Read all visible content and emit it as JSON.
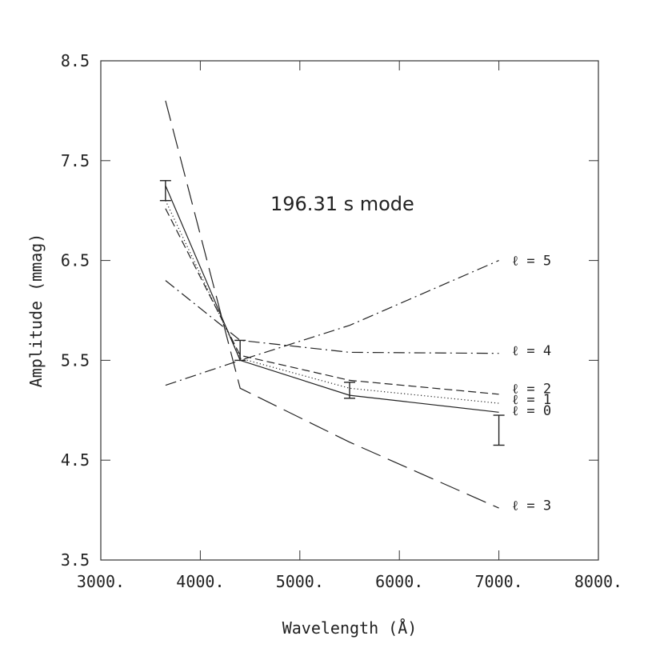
{
  "chart_data": {
    "type": "line",
    "title": "196.31 s mode",
    "xlabel": "Wavelength (Å)",
    "ylabel": "Amplitude (mmag)",
    "xlim": [
      3000,
      8000
    ],
    "ylim": [
      3.5,
      8.5
    ],
    "xticks": [
      "3000.",
      "4000.",
      "5000.",
      "6000.",
      "7000.",
      "8000."
    ],
    "xtick_values": [
      3000,
      4000,
      5000,
      6000,
      7000,
      8000
    ],
    "yticks": [
      "3.5",
      "4.5",
      "5.5",
      "6.5",
      "7.5",
      "8.5"
    ],
    "ytick_values": [
      3.5,
      4.5,
      5.5,
      6.5,
      7.5,
      8.5
    ],
    "grid": false,
    "observed": {
      "x": [
        3650,
        4400,
        5500,
        7000
      ],
      "y": [
        7.2,
        5.6,
        5.2,
        4.8
      ],
      "err_low": [
        7.1,
        5.5,
        5.12,
        4.65
      ],
      "err_high": [
        7.3,
        5.7,
        5.28,
        4.95
      ]
    },
    "series": [
      {
        "name": "ℓ = 0",
        "style": "solid",
        "x": [
          3650,
          4400,
          5500,
          7000
        ],
        "y": [
          7.25,
          5.5,
          5.15,
          4.98
        ]
      },
      {
        "name": "ℓ = 1",
        "style": "dotted",
        "x": [
          3650,
          4400,
          5500,
          7000
        ],
        "y": [
          7.1,
          5.52,
          5.22,
          5.07
        ]
      },
      {
        "name": "ℓ = 2",
        "style": "dashed",
        "x": [
          3650,
          4400,
          5500,
          7000
        ],
        "y": [
          7.02,
          5.55,
          5.3,
          5.16
        ]
      },
      {
        "name": "ℓ = 3",
        "style": "longdash",
        "x": [
          3650,
          4400,
          5500,
          7000
        ],
        "y": [
          8.1,
          5.22,
          4.68,
          4.02
        ]
      },
      {
        "name": "ℓ = 4",
        "style": "dashdot",
        "x": [
          3650,
          4400,
          5500,
          7000
        ],
        "y": [
          6.3,
          5.7,
          5.58,
          5.57
        ]
      },
      {
        "name": "ℓ = 5",
        "style": "dashdot",
        "x": [
          3650,
          4400,
          5500,
          7000
        ],
        "y": [
          5.25,
          5.5,
          5.85,
          6.5
        ]
      }
    ],
    "labels": [
      {
        "text": "ℓ = 5",
        "y": 6.5
      },
      {
        "text": "ℓ = 4",
        "y": 5.6
      },
      {
        "text": "ℓ = 2",
        "y": 5.22
      },
      {
        "text": "ℓ = 1",
        "y": 5.11
      },
      {
        "text": "ℓ = 0",
        "y": 5.0
      },
      {
        "text": "ℓ = 3",
        "y": 4.05
      }
    ]
  }
}
